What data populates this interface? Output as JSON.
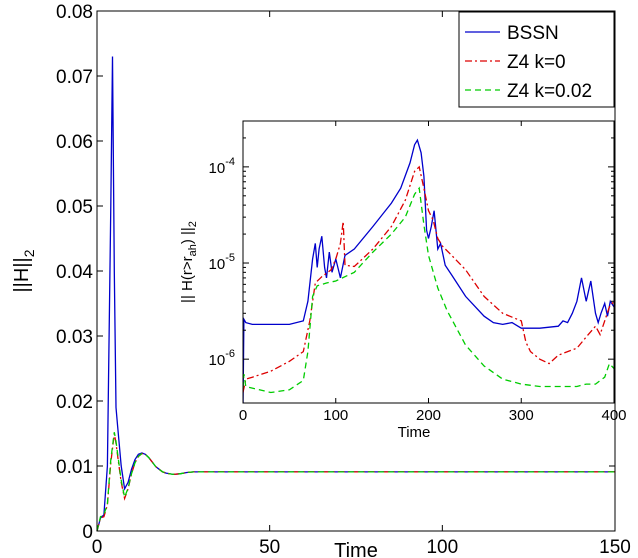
{
  "chart_data": [
    {
      "type": "line",
      "role": "main",
      "xlabel": "Time",
      "ylabel": "||H||",
      "ylabel_sub": "2",
      "xlim": [
        0,
        150
      ],
      "ylim": [
        0,
        0.08
      ],
      "xticks": [
        0,
        50,
        100,
        150
      ],
      "xtick_labels": [
        "0",
        "50",
        "100",
        "150"
      ],
      "yticks": [
        0,
        0.01,
        0.02,
        0.03,
        0.04,
        0.05,
        0.06,
        0.07,
        0.08
      ],
      "ytick_labels": [
        "0",
        "0.01",
        "0.02",
        "0.03",
        "0.04",
        "0.05",
        "0.06",
        "0.07",
        "0.08"
      ],
      "grid": false,
      "legend": "top-right",
      "series": [
        {
          "name": "BSSN",
          "color": "#0000cc",
          "dash": "solid",
          "x": [
            0,
            1,
            2,
            3,
            4,
            4.5,
            5,
            5.5,
            6,
            7,
            8,
            9,
            10,
            11,
            12,
            13,
            14,
            15,
            16,
            17,
            18,
            19,
            20,
            22,
            24,
            26,
            28,
            30,
            35,
            40,
            50,
            60,
            80,
            100,
            120,
            150
          ],
          "y": [
            0,
            0.002,
            0.0025,
            0.01,
            0.05,
            0.073,
            0.04,
            0.019,
            0.016,
            0.01,
            0.0065,
            0.0075,
            0.0095,
            0.011,
            0.0118,
            0.012,
            0.0118,
            0.0113,
            0.0106,
            0.0099,
            0.0095,
            0.0091,
            0.0089,
            0.0087,
            0.0088,
            0.009,
            0.0091,
            0.0091,
            0.0091,
            0.0091,
            0.0091,
            0.0091,
            0.0091,
            0.0091,
            0.0091,
            0.0091
          ]
        },
        {
          "name": "Z4 k=0",
          "color": "#dd0000",
          "dash": "dashdot",
          "x": [
            0,
            1,
            2,
            3,
            4,
            5,
            5.5,
            6,
            7,
            8,
            9,
            10,
            11,
            12,
            13,
            14,
            15,
            16,
            17,
            18,
            19,
            20,
            22,
            24,
            26,
            28,
            30,
            35,
            40,
            50,
            60,
            80,
            100,
            120,
            150
          ],
          "y": [
            0,
            0.002,
            0.0022,
            0.004,
            0.0105,
            0.015,
            0.0135,
            0.0115,
            0.0075,
            0.005,
            0.0065,
            0.0088,
            0.0105,
            0.0115,
            0.0119,
            0.0118,
            0.0113,
            0.0106,
            0.0099,
            0.0095,
            0.0091,
            0.0089,
            0.0087,
            0.0088,
            0.009,
            0.0091,
            0.0091,
            0.0091,
            0.0091,
            0.0091,
            0.0091,
            0.0091,
            0.0091,
            0.0091,
            0.0091
          ]
        },
        {
          "name": "Z4 k=0.02",
          "color": "#00cc00",
          "dash": "dashed",
          "x": [
            0,
            1,
            2,
            3,
            4,
            5,
            5.5,
            6,
            7,
            8,
            9,
            10,
            11,
            12,
            13,
            14,
            15,
            16,
            17,
            18,
            19,
            20,
            22,
            24,
            26,
            28,
            30,
            35,
            40,
            50,
            60,
            80,
            100,
            120,
            150
          ],
          "y": [
            0,
            0.0022,
            0.0025,
            0.0042,
            0.011,
            0.0152,
            0.0138,
            0.0118,
            0.0078,
            0.0052,
            0.0066,
            0.0088,
            0.0105,
            0.0115,
            0.0119,
            0.0118,
            0.0113,
            0.0106,
            0.0099,
            0.0095,
            0.0091,
            0.0089,
            0.0087,
            0.0088,
            0.009,
            0.0091,
            0.0091,
            0.0091,
            0.0091,
            0.0091,
            0.0091,
            0.0091,
            0.0091,
            0.0091,
            0.0091
          ]
        }
      ]
    },
    {
      "type": "line",
      "role": "inset",
      "xlabel": "Time",
      "ylabel": "|| H(r>r",
      "ylabel_sub": "ah",
      "ylabel_end": ") ||",
      "ylabel_sub2": "2",
      "xlim": [
        0,
        400
      ],
      "ylim": [
        3.5e-07,
        0.0003
      ],
      "log_y": true,
      "xticks": [
        0,
        100,
        200,
        300,
        400
      ],
      "xtick_labels": [
        "0",
        "100",
        "200",
        "300",
        "400"
      ],
      "yticks": [
        1e-06,
        1e-05,
        0.0001
      ],
      "ytick_base": "10",
      "ytick_exponents": [
        "-6",
        "-5",
        "-4"
      ],
      "grid": false,
      "series": [
        {
          "name": "BSSN",
          "color": "#0000cc",
          "dash": "solid",
          "x": [
            0,
            1,
            3,
            10,
            30,
            50,
            65,
            70,
            75,
            78,
            80,
            82,
            85,
            88,
            90,
            93,
            96,
            100,
            105,
            110,
            120,
            140,
            160,
            170,
            180,
            185,
            188,
            192,
            195,
            198,
            200,
            203,
            206,
            210,
            213,
            218,
            225,
            240,
            260,
            270,
            280,
            290,
            300,
            320,
            340,
            345,
            350,
            355,
            360,
            365,
            370,
            375,
            380,
            383,
            386,
            390,
            393,
            396,
            400
          ],
          "y": [
            3e-07,
            2.6e-06,
            2.4e-06,
            2.3e-06,
            2.3e-06,
            2.3e-06,
            2.5e-06,
            4e-06,
            1.1e-05,
            1.6e-05,
            9e-06,
            1.4e-05,
            1.9e-05,
            9e-06,
            7e-06,
            1.3e-05,
            8e-06,
            1.1e-05,
            7e-06,
            1.2e-05,
            1.4e-05,
            2.4e-05,
            4.2e-05,
            6e-05,
            0.00011,
            0.00017,
            0.00019,
            0.00014,
            8e-05,
            2.2e-05,
            1.8e-05,
            2.4e-05,
            3.5e-05,
            1.4e-05,
            1.6e-05,
            9.5e-06,
            7.5e-06,
            4.5e-06,
            2.8e-06,
            2.4e-06,
            2.3e-06,
            2.4e-06,
            2.1e-06,
            2.1e-06,
            2.2e-06,
            2.5e-06,
            2.4e-06,
            3e-06,
            4e-06,
            7e-06,
            4e-06,
            6.5e-06,
            3e-06,
            2.4e-06,
            3e-06,
            3.8e-06,
            2.8e-06,
            4e-06,
            3.5e-06
          ]
        },
        {
          "name": "Z4 k=0",
          "color": "#dd0000",
          "dash": "dashdot",
          "x": [
            0,
            3,
            10,
            30,
            50,
            65,
            72,
            78,
            85,
            95,
            100,
            105,
            108,
            110,
            120,
            140,
            160,
            175,
            185,
            190,
            195,
            200,
            205,
            210,
            215,
            225,
            240,
            260,
            280,
            300,
            305,
            310,
            320,
            330,
            340,
            350,
            360,
            370,
            380,
            385,
            390,
            395,
            400
          ],
          "y": [
            4.5e-07,
            6.2e-07,
            6.5e-07,
            7.5e-07,
            9.5e-07,
            1.2e-06,
            2.5e-06,
            6.2e-06,
            7.2e-06,
            8.5e-06,
            1.1e-05,
            1.6e-05,
            2.7e-05,
            9.5e-06,
            9.2e-06,
            1.4e-05,
            2.4e-05,
            4.5e-05,
            9e-05,
            0.0001,
            6e-05,
            3.5e-05,
            2.8e-05,
            1.8e-05,
            1.5e-05,
            1.2e-05,
            8.5e-06,
            4.5e-06,
            3e-06,
            2.5e-06,
            1.5e-06,
            1.2e-06,
            1e-06,
            9e-07,
            1.1e-06,
            1.2e-06,
            1.3e-06,
            1.7e-06,
            2.2e-06,
            1.8e-06,
            2.5e-06,
            3.5e-06,
            4e-06
          ]
        },
        {
          "name": "Z4 k=0.02",
          "color": "#00cc00",
          "dash": "dashed",
          "x": [
            0,
            1,
            3,
            10,
            30,
            50,
            65,
            70,
            75,
            80,
            90,
            100,
            120,
            140,
            160,
            175,
            185,
            190,
            195,
            200,
            210,
            220,
            240,
            260,
            280,
            300,
            320,
            340,
            360,
            370,
            380,
            390,
            395,
            400
          ],
          "y": [
            5e-07,
            7e-07,
            5.2e-07,
            5e-07,
            4.5e-07,
            4.8e-07,
            6e-07,
            1.2e-06,
            4.5e-06,
            5.8e-06,
            6.2e-06,
            6.5e-06,
            8e-06,
            1.3e-05,
            2e-05,
            3e-05,
            5.2e-05,
            6e-05,
            2.5e-05,
            1.2e-05,
            5.5e-06,
            3.2e-06,
            1.4e-06,
            8.5e-07,
            6.2e-07,
            5.5e-07,
            5.2e-07,
            5.2e-07,
            5.2e-07,
            5.5e-07,
            5.5e-07,
            6.5e-07,
            9e-07,
            8e-07
          ]
        }
      ]
    }
  ]
}
